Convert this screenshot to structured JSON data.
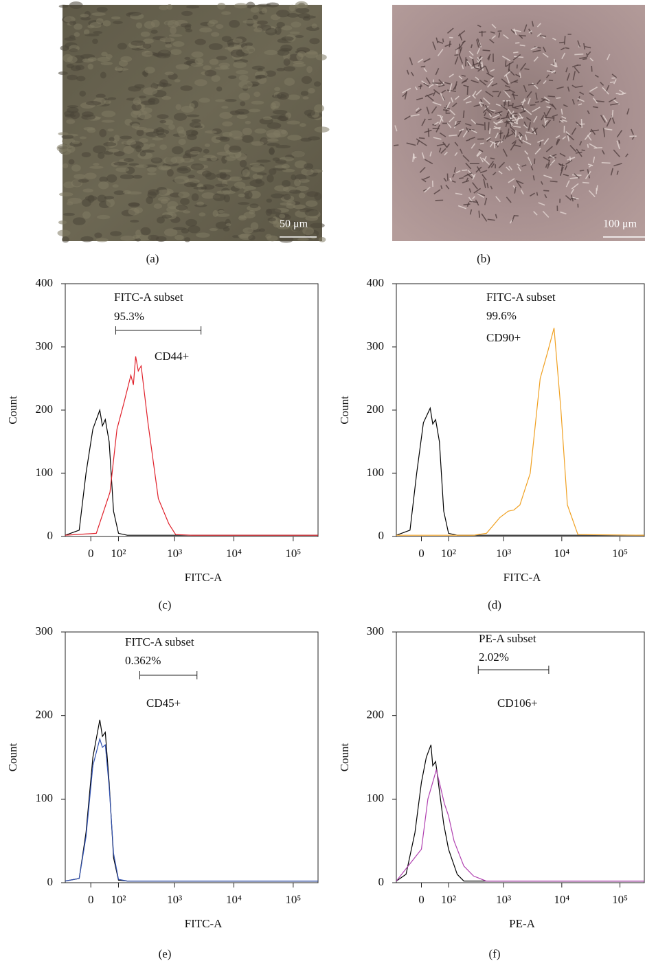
{
  "panel_labels": [
    "(a)",
    "(b)",
    "(c)",
    "(d)",
    "(e)",
    "(f)"
  ],
  "images": [
    {
      "scale_bar": "50 μm"
    },
    {
      "scale_bar": "100 μm"
    }
  ],
  "chart_data": [
    {
      "type": "line",
      "x_label": "FITC-A",
      "y_label": "Count",
      "xscale": "biexponential",
      "xlim": [
        -90,
        262144
      ],
      "xticks": [
        0,
        {
          "value": 100,
          "label": "10²"
        },
        {
          "value": 1000,
          "label": "10³"
        },
        {
          "value": 10000,
          "label": "10⁴"
        },
        {
          "value": 100000,
          "label": "10⁵"
        }
      ],
      "ylim": [
        0,
        400
      ],
      "yticks": [
        0,
        100,
        200,
        300,
        400
      ],
      "gate_name": "FITC-A subset",
      "gate_percent": "95.3%",
      "gate": [
        87,
        2790
      ],
      "marker": "CD44+",
      "series": [
        {
          "color": "#000000",
          "x": [
            -90,
            -36,
            -14.6,
            6.2,
            27.5,
            36,
            46,
            60,
            77.6,
            100,
            150,
            262144
          ],
          "values": [
            2,
            10,
            100,
            170,
            200,
            175,
            185,
            150,
            40,
            5,
            2,
            2
          ]
        },
        {
          "color": "#e0202a",
          "x": [
            -90,
            16.7,
            63,
            93,
            128,
            175,
            195,
            214,
            238,
            268,
            352,
            530,
            798,
            1040,
            2000,
            262144
          ],
          "values": [
            2,
            5,
            70,
            170,
            210,
            255,
            240,
            285,
            262,
            270,
            180,
            60,
            20,
            3,
            2,
            2
          ]
        }
      ]
    },
    {
      "type": "line",
      "x_label": "FITC-A",
      "y_label": "Count",
      "xscale": "biexponential",
      "xlim": [
        -90,
        262144
      ],
      "xticks": [
        0,
        {
          "value": 100,
          "label": "10²"
        },
        {
          "value": 1000,
          "label": "10³"
        },
        {
          "value": 10000,
          "label": "10⁴"
        },
        {
          "value": 100000,
          "label": "10⁵"
        }
      ],
      "ylim": [
        0,
        400
      ],
      "yticks": [
        0,
        100,
        200,
        300,
        400
      ],
      "gate_name": "FITC-A subset",
      "gate_percent": "99.6%",
      "marker": "CD90+",
      "series": [
        {
          "color": "#000000",
          "x": [
            -90,
            -36,
            -14.6,
            6.2,
            27.5,
            36,
            46,
            60,
            77.6,
            100,
            150,
            262144
          ],
          "values": [
            2,
            10,
            100,
            180,
            203,
            178,
            185,
            150,
            40,
            5,
            2,
            2
          ]
        },
        {
          "color": "#f0a020",
          "x": [
            -90,
            300,
            505,
            860,
            1200,
            1500,
            1910,
            2870,
            4260,
            5640,
            7360,
            9670,
            12500,
            18900,
            262144
          ],
          "values": [
            2,
            2,
            5,
            30,
            40,
            42,
            50,
            100,
            250,
            290,
            330,
            200,
            50,
            3,
            2
          ]
        }
      ]
    },
    {
      "type": "line",
      "x_label": "FITC-A",
      "y_label": "Count",
      "xscale": "biexponential",
      "xlim": [
        -90,
        262144
      ],
      "xticks": [
        0,
        {
          "value": 100,
          "label": "10²"
        },
        {
          "value": 1000,
          "label": "10³"
        },
        {
          "value": 10000,
          "label": "10⁴"
        },
        {
          "value": 100000,
          "label": "10⁵"
        }
      ],
      "ylim": [
        0,
        300
      ],
      "yticks": [
        0,
        100,
        200,
        300
      ],
      "gate_name": "FITC-A subset",
      "gate_percent": "0.362%",
      "gate": [
        253,
        2385
      ],
      "marker": "CD45+",
      "series": [
        {
          "color": "#000000",
          "x": [
            -90,
            -36,
            -14.6,
            6.2,
            27.5,
            36,
            46,
            60,
            77.6,
            100,
            150,
            262144
          ],
          "values": [
            2,
            5,
            60,
            150,
            195,
            175,
            180,
            120,
            30,
            3,
            2,
            2
          ]
        },
        {
          "color": "#3050b0",
          "x": [
            -90,
            -36,
            -14.6,
            6.2,
            27.5,
            36,
            46,
            60,
            77.6,
            100,
            150,
            262144
          ],
          "values": [
            2,
            5,
            55,
            140,
            172,
            162,
            165,
            115,
            35,
            4,
            2,
            2
          ]
        }
      ]
    },
    {
      "type": "line",
      "x_label": "PE-A",
      "y_label": "Count",
      "xscale": "biexponential",
      "xlim": [
        -90,
        262144
      ],
      "xticks": [
        0,
        {
          "value": 100,
          "label": "10²"
        },
        {
          "value": 1000,
          "label": "10³"
        },
        {
          "value": 10000,
          "label": "10⁴"
        },
        {
          "value": 100000,
          "label": "10⁵"
        }
      ],
      "ylim": [
        0,
        300
      ],
      "yticks": [
        0,
        100,
        200,
        300
      ],
      "gate_name": "PE-A subset",
      "gate_percent": "2.02%",
      "gate": [
        363,
        5975
      ],
      "marker": "CD106+",
      "series": [
        {
          "color": "#000000",
          "x": [
            -90,
            -50,
            -20,
            0,
            15,
            30,
            36,
            46,
            60,
            77.6,
            100,
            150,
            200,
            262144
          ],
          "values": [
            2,
            10,
            60,
            120,
            150,
            165,
            140,
            145,
            110,
            70,
            40,
            10,
            2,
            2
          ]
        },
        {
          "color": "#b040b0",
          "x": [
            -90,
            0,
            20,
            40,
            48,
            60,
            80,
            100,
            130,
            200,
            300,
            500,
            262144
          ],
          "values": [
            2,
            40,
            100,
            125,
            135,
            120,
            95,
            80,
            50,
            20,
            8,
            2,
            2
          ]
        }
      ]
    }
  ]
}
